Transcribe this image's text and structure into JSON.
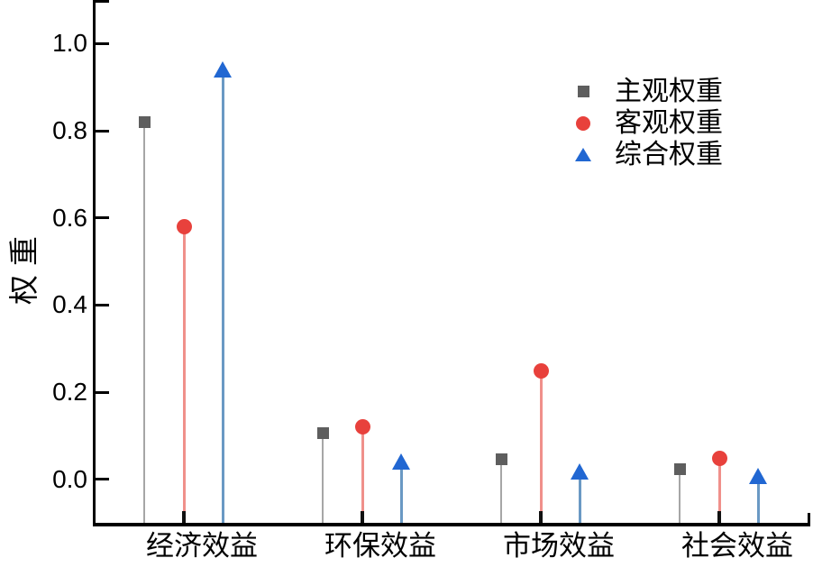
{
  "chart_data": {
    "type": "stem",
    "title": "",
    "ylabel": "权重",
    "categories": [
      "经济效益",
      "环保效益",
      "市场效益",
      "社会效益"
    ],
    "series": [
      {
        "name": "主观权重",
        "marker": "square",
        "marker_color": "#5e5e5e",
        "stem_color": "#a6a6a6",
        "stem_width": 2,
        "offset": -0.22,
        "values": [
          0.82,
          0.105,
          0.046,
          0.023
        ]
      },
      {
        "name": "客观权重",
        "marker": "circle",
        "marker_color": "#e8413c",
        "stem_color": "#f0908b",
        "stem_width": 3,
        "offset": 0,
        "values": [
          0.58,
          0.12,
          0.249,
          0.048
        ]
      },
      {
        "name": "综合权重",
        "marker": "triangle",
        "marker_color": "#2167d2",
        "stem_color": "#6a99c4",
        "stem_width": 3,
        "offset": 0.22,
        "values": [
          0.94,
          0.04,
          0.018,
          0.008
        ]
      }
    ],
    "y_ticks": [
      {
        "value": 0.0,
        "label": "0.0"
      },
      {
        "value": 0.2,
        "label": "0.2"
      },
      {
        "value": 0.4,
        "label": "0.4"
      },
      {
        "value": 0.6,
        "label": "0.6"
      },
      {
        "value": 0.8,
        "label": "0.8"
      },
      {
        "value": 1.0,
        "label": "1.0"
      }
    ],
    "y_extra_tick": 1.1,
    "ylim": [
      -0.1,
      1.1
    ],
    "stem_baseline": -0.1,
    "legend_position": "upper right",
    "grid": false,
    "axis_color": "#000000",
    "background_color": "#ffffff"
  }
}
